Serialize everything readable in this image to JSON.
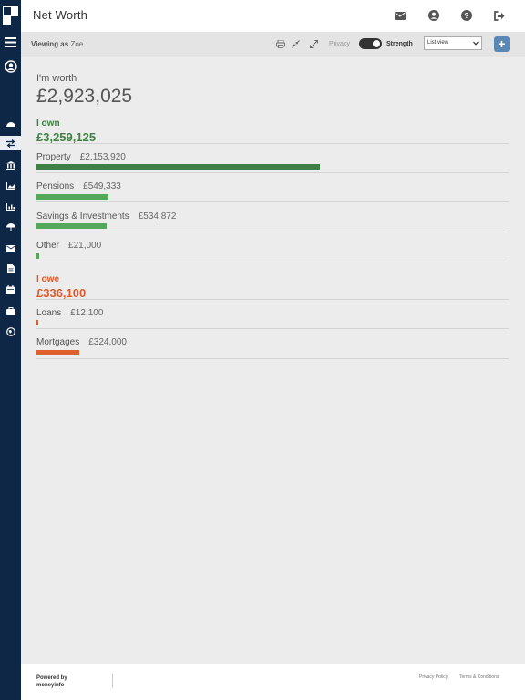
{
  "header": {
    "title": "Net Worth",
    "icons": [
      "mail-icon",
      "user-icon",
      "help-icon",
      "logout-icon"
    ]
  },
  "toolbar": {
    "viewing_label": "Viewing as",
    "viewing_name": "Zoe",
    "privacy_label": "Privacy",
    "strength_label": "Strength",
    "privacy_on": true,
    "view_select": "List view",
    "add_label": "+"
  },
  "sidebar": {
    "items": [
      "menu-icon",
      "profile-icon",
      "dashboard-icon",
      "transfer-icon",
      "bank-icon",
      "area-chart-icon",
      "bar-chart-icon",
      "umbrella-icon",
      "mail-icon",
      "document-icon",
      "calendar-icon",
      "briefcase-icon",
      "globe-icon"
    ],
    "active": "transfer-icon"
  },
  "summary": {
    "worth_label": "I'm worth",
    "worth_total": "£2,923,025"
  },
  "own": {
    "label": "I own",
    "total": "£3,259,125",
    "color": "#3f7e44",
    "rows": [
      {
        "label": "Property",
        "amount": "£2,153,920",
        "value": 2153920
      },
      {
        "label": "Pensions",
        "amount": "£549,333",
        "value": 549333
      },
      {
        "label": "Savings & Investments",
        "amount": "£534,872",
        "value": 534872
      },
      {
        "label": "Other",
        "amount": "£21,000",
        "value": 21000
      }
    ]
  },
  "owe": {
    "label": "I owe",
    "total": "£336,100",
    "color": "#e05a2a",
    "rows": [
      {
        "label": "Loans",
        "amount": "£12,100",
        "value": 12100
      },
      {
        "label": "Mortgages",
        "amount": "£324,000",
        "value": 324000
      }
    ]
  },
  "footer": {
    "powered_line1": "Powered by",
    "powered_line2": "moneyinfo",
    "privacy_policy": "Privacy Policy",
    "terms": "Terms & Conditions"
  }
}
